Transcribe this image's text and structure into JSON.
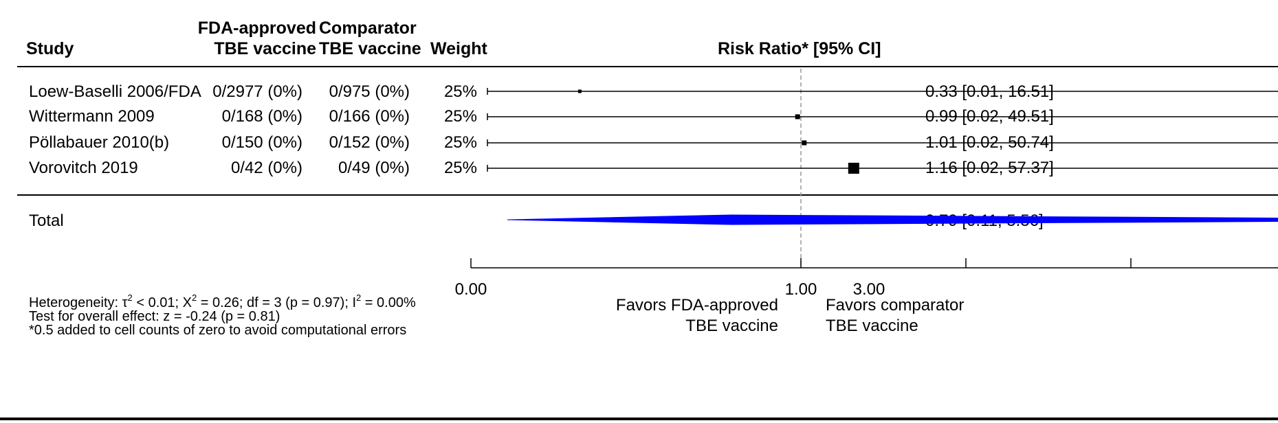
{
  "header": {
    "study": "Study",
    "group1_line1": "FDA-approved",
    "group1_line2": "TBE vaccine",
    "group2_line1": "Comparator",
    "group2_line2": "TBE vaccine",
    "weight": "Weight",
    "effect": "Risk Ratio* [95% CI]"
  },
  "rows": [
    {
      "study": "Loew-Baselli 2006/FDA",
      "g1": "0/2977 (0%)",
      "g2": "0/975 (0%)",
      "weight": "25%",
      "ci_text": "0.33 [0.01, 16.51]"
    },
    {
      "study": "Wittermann 2009",
      "g1": "0/168 (0%)",
      "g2": "0/166 (0%)",
      "weight": "25%",
      "ci_text": "0.99 [0.02, 49.51]"
    },
    {
      "study": "Pöllabauer 2010(b)",
      "g1": "0/150 (0%)",
      "g2": "0/152 (0%)",
      "weight": "25%",
      "ci_text": "1.01 [0.02, 50.74]"
    },
    {
      "study": "Vorovitch 2019",
      "g1": "0/42 (0%)",
      "g2": "0/49 (0%)",
      "weight": "25%",
      "ci_text": "1.16 [0.02, 57.37]"
    }
  ],
  "total": {
    "label": "Total",
    "ci_text": "0.79 [0.11,  5.56]"
  },
  "axis": {
    "tick_labels": [
      "0.00",
      "1.00",
      "3.00"
    ],
    "favors_left_line1": "Favors FDA-approved",
    "favors_left_line2": "TBE vaccine",
    "favors_right_line1": "Favors comparator",
    "favors_right_line2": "TBE vaccine"
  },
  "footnotes": {
    "het_a": "Heterogeneity: τ",
    "het_b": " < 0.01; Χ",
    "het_c": " = 0.26; df = 3 (p = 0.97); I",
    "het_d": " = 0.00%",
    "sup2": "2",
    "overall": "Test for overall effect: z = -0.24 (p = 0.81)",
    "correction": "*0.5 added to cell counts of zero to avoid computational errors"
  },
  "colors": {
    "summary_diamond": "#0000ff",
    "reference_line": "#999999",
    "ink": "#000000"
  },
  "chart_data": {
    "type": "forest",
    "effect_measure": "Risk Ratio",
    "scale": "linear",
    "reference_value": 1,
    "x_ticks": [
      0,
      1,
      1.5,
      2,
      2.5,
      3,
      3.5
    ],
    "x_range": [
      0,
      3.4
    ],
    "studies": [
      {
        "name": "Loew-Baselli 2006/FDA",
        "estimate": 0.33,
        "lower": 0.01,
        "upper": 16.51,
        "weight": 25
      },
      {
        "name": "Wittermann 2009",
        "estimate": 0.99,
        "lower": 0.02,
        "upper": 49.51,
        "weight": 25
      },
      {
        "name": "Pöllabauer 2010(b)",
        "estimate": 1.01,
        "lower": 0.02,
        "upper": 50.74,
        "weight": 25
      },
      {
        "name": "Vorovitch 2019",
        "estimate": 1.16,
        "lower": 0.02,
        "upper": 57.37,
        "weight": 25
      }
    ],
    "summary": {
      "name": "Total",
      "estimate": 0.79,
      "lower": 0.11,
      "upper": 5.56
    }
  }
}
